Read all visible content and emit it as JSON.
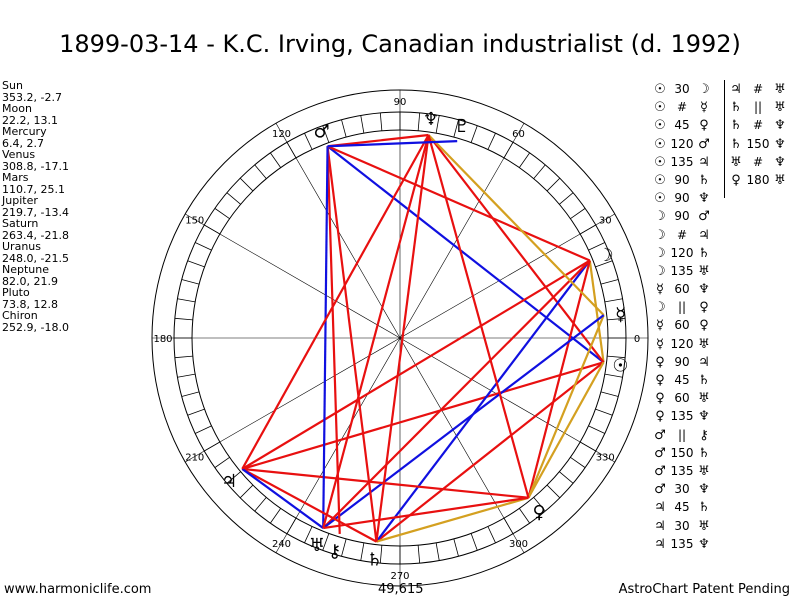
{
  "title": "1899-03-14 - K.C. Irving, Canadian industrialist (d. 1992)",
  "planets": [
    {
      "name": "Sun",
      "value": "353.2, -2.7"
    },
    {
      "name": "Moon",
      "value": "22.2, 13.1"
    },
    {
      "name": "Mercury",
      "value": "6.4, 2.7"
    },
    {
      "name": "Venus",
      "value": "308.8, -17.1"
    },
    {
      "name": "Mars",
      "value": "110.7, 25.1"
    },
    {
      "name": "Jupiter",
      "value": "219.7, -13.4"
    },
    {
      "name": "Saturn",
      "value": "263.4, -21.8"
    },
    {
      "name": "Uranus",
      "value": "248.0, -21.5"
    },
    {
      "name": "Neptune",
      "value": "82.0, 21.9"
    },
    {
      "name": "Pluto",
      "value": "73.8, 12.8"
    },
    {
      "name": "Chiron",
      "value": "252.9, -18.0"
    }
  ],
  "degree_labels": [
    "90",
    "60",
    "30",
    "0",
    "330",
    "300",
    "270",
    "240",
    "210",
    "180",
    "150",
    "120"
  ],
  "aspects_col1": [
    [
      "☉",
      "30",
      "☽"
    ],
    [
      "☉",
      "#",
      "☿"
    ],
    [
      "☉",
      "45",
      "♀"
    ],
    [
      "☉",
      "120",
      "♂"
    ],
    [
      "☉",
      "135",
      "♃"
    ],
    [
      "☉",
      "90",
      "♄"
    ],
    [
      "☉",
      "90",
      "♆"
    ],
    [
      "☽",
      "90",
      "♂"
    ],
    [
      "☽",
      "#",
      "♃"
    ],
    [
      "☽",
      "120",
      "♄"
    ],
    [
      "☽",
      "135",
      "♅"
    ],
    [
      "☿",
      "60",
      "♆"
    ],
    [
      "☽",
      "||",
      "♀"
    ],
    [
      "☿",
      "60",
      "♀"
    ],
    [
      "☿",
      "120",
      "♅"
    ],
    [
      "♀",
      "90",
      "♃"
    ],
    [
      "♀",
      "45",
      "♄"
    ],
    [
      "♀",
      "60",
      "♅"
    ],
    [
      "♀",
      "135",
      "♆"
    ],
    [
      "♂",
      "||",
      "⚷"
    ],
    [
      "♂",
      "150",
      "♄"
    ],
    [
      "♂",
      "135",
      "♅"
    ],
    [
      "♂",
      "30",
      "♆"
    ],
    [
      "♃",
      "45",
      "♄"
    ],
    [
      "♃",
      "30",
      "♅"
    ],
    [
      "♃",
      "135",
      "♆"
    ]
  ],
  "aspects_col2": [
    [
      "♃",
      "#",
      "♅"
    ],
    [
      "♄",
      "||",
      "♅"
    ],
    [
      "♄",
      "#",
      "♆"
    ],
    [
      "♄",
      "150",
      "♆"
    ],
    [
      "♅",
      "#",
      "♆"
    ],
    [
      "♀",
      "180",
      "♅"
    ]
  ],
  "footer_left": "www.harmoniclife.com",
  "footer_right": "AstroChart Patent Pending",
  "footer_coord": "49,615",
  "colors": {
    "square": "#e81010",
    "trine": "#1010e0",
    "sextile": "#d4a020",
    "ring": "#000000"
  }
}
